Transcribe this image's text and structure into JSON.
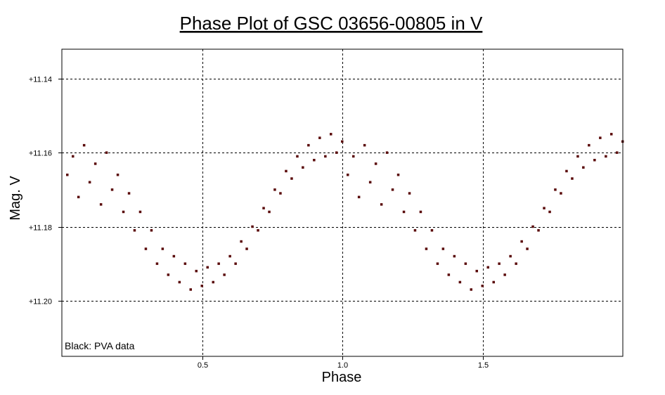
{
  "chart_data": {
    "type": "scatter",
    "title": "Phase Plot of GSC 03656-00805 in V",
    "xlabel": "Phase",
    "ylabel": "Mag. V",
    "xlim": [
      0.0,
      2.0
    ],
    "ylim": [
      11.215,
      11.132
    ],
    "y_inverted": true,
    "x_ticks": [
      0.5,
      1.0,
      1.5
    ],
    "x_tick_labels": [
      "0.5",
      "1.0",
      "1.5"
    ],
    "y_ticks": [
      11.14,
      11.16,
      11.18,
      11.2
    ],
    "y_tick_labels": [
      "+11.14",
      "+11.16",
      "+11.18",
      "+11.20"
    ],
    "grid": true,
    "legend": {
      "placement": "bottom-left",
      "text": "Black:  PVA data"
    },
    "marker_color": "#5a0a0a",
    "series": [
      {
        "points": [
          [
            0.02,
            11.166
          ],
          [
            0.04,
            11.161
          ],
          [
            0.06,
            11.172
          ],
          [
            0.08,
            11.158
          ],
          [
            0.1,
            11.168
          ],
          [
            0.12,
            11.163
          ],
          [
            0.14,
            11.174
          ],
          [
            0.16,
            11.16
          ],
          [
            0.18,
            11.17
          ],
          [
            0.2,
            11.166
          ],
          [
            0.22,
            11.176
          ],
          [
            0.24,
            11.171
          ],
          [
            0.26,
            11.181
          ],
          [
            0.28,
            11.176
          ],
          [
            0.3,
            11.186
          ],
          [
            0.32,
            11.181
          ],
          [
            0.34,
            11.19
          ],
          [
            0.36,
            11.186
          ],
          [
            0.38,
            11.193
          ],
          [
            0.4,
            11.188
          ],
          [
            0.42,
            11.195
          ],
          [
            0.44,
            11.19
          ],
          [
            0.46,
            11.197
          ],
          [
            0.48,
            11.192
          ],
          [
            0.5,
            11.196
          ],
          [
            0.52,
            11.191
          ],
          [
            0.54,
            11.195
          ],
          [
            0.56,
            11.19
          ],
          [
            0.58,
            11.193
          ],
          [
            0.6,
            11.188
          ],
          [
            0.62,
            11.19
          ],
          [
            0.64,
            11.184
          ],
          [
            0.66,
            11.186
          ],
          [
            0.68,
            11.18
          ],
          [
            0.7,
            11.181
          ],
          [
            0.72,
            11.175
          ],
          [
            0.74,
            11.176
          ],
          [
            0.76,
            11.17
          ],
          [
            0.78,
            11.171
          ],
          [
            0.8,
            11.165
          ],
          [
            0.82,
            11.167
          ],
          [
            0.84,
            11.161
          ],
          [
            0.86,
            11.164
          ],
          [
            0.88,
            11.158
          ],
          [
            0.9,
            11.162
          ],
          [
            0.92,
            11.156
          ],
          [
            0.94,
            11.161
          ],
          [
            0.96,
            11.155
          ],
          [
            0.98,
            11.16
          ],
          [
            1.0,
            11.157
          ],
          [
            1.02,
            11.166
          ],
          [
            1.04,
            11.161
          ],
          [
            1.06,
            11.172
          ],
          [
            1.08,
            11.158
          ],
          [
            1.1,
            11.168
          ],
          [
            1.12,
            11.163
          ],
          [
            1.14,
            11.174
          ],
          [
            1.16,
            11.16
          ],
          [
            1.18,
            11.17
          ],
          [
            1.2,
            11.166
          ],
          [
            1.22,
            11.176
          ],
          [
            1.24,
            11.171
          ],
          [
            1.26,
            11.181
          ],
          [
            1.28,
            11.176
          ],
          [
            1.3,
            11.186
          ],
          [
            1.32,
            11.181
          ],
          [
            1.34,
            11.19
          ],
          [
            1.36,
            11.186
          ],
          [
            1.38,
            11.193
          ],
          [
            1.4,
            11.188
          ],
          [
            1.42,
            11.195
          ],
          [
            1.44,
            11.19
          ],
          [
            1.46,
            11.197
          ],
          [
            1.48,
            11.192
          ],
          [
            1.5,
            11.196
          ],
          [
            1.52,
            11.191
          ],
          [
            1.54,
            11.195
          ],
          [
            1.56,
            11.19
          ],
          [
            1.58,
            11.193
          ],
          [
            1.6,
            11.188
          ],
          [
            1.62,
            11.19
          ],
          [
            1.64,
            11.184
          ],
          [
            1.66,
            11.186
          ],
          [
            1.68,
            11.18
          ],
          [
            1.7,
            11.181
          ],
          [
            1.72,
            11.175
          ],
          [
            1.74,
            11.176
          ],
          [
            1.76,
            11.17
          ],
          [
            1.78,
            11.171
          ],
          [
            1.8,
            11.165
          ],
          [
            1.82,
            11.167
          ],
          [
            1.84,
            11.161
          ],
          [
            1.86,
            11.164
          ],
          [
            1.88,
            11.158
          ],
          [
            1.9,
            11.162
          ],
          [
            1.92,
            11.156
          ],
          [
            1.94,
            11.161
          ],
          [
            1.96,
            11.155
          ],
          [
            1.98,
            11.16
          ],
          [
            2.0,
            11.157
          ]
        ]
      }
    ]
  }
}
